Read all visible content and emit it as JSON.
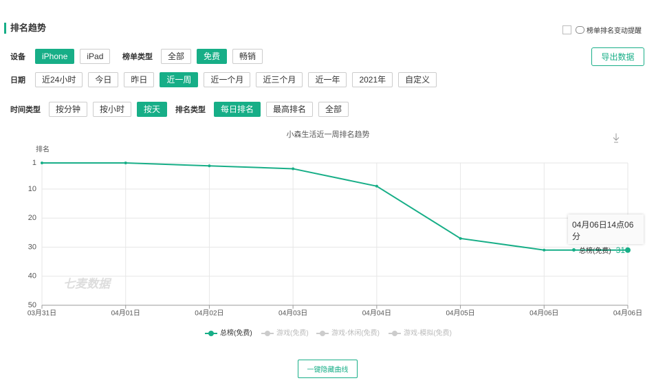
{
  "header": {
    "title": "排名趋势",
    "reminder": "榜单排名变动提醒",
    "export": "导出数据"
  },
  "filters": [
    {
      "label": "设备",
      "options": [
        "iPhone",
        "iPad"
      ],
      "active": 0
    },
    {
      "label": "榜单类型",
      "options": [
        "全部",
        "免费",
        "畅销"
      ],
      "active": 1
    },
    {
      "label": "日期",
      "options": [
        "近24小时",
        "今日",
        "昨日",
        "近一周",
        "近一个月",
        "近三个月",
        "近一年",
        "2021年",
        "自定义"
      ],
      "active": 3
    },
    {
      "label": "时间类型",
      "options": [
        "按分钟",
        "按小时",
        "按天"
      ],
      "active": 2
    },
    {
      "label": "排名类型",
      "options": [
        "每日排名",
        "最高排名",
        "全部"
      ],
      "active": 0
    }
  ],
  "chart_data": {
    "type": "line",
    "title": "小森生活近一周排名趋势",
    "y_label": "排名",
    "watermark": "七麦数据",
    "categories": [
      "03月31日",
      "04月01日",
      "04月02日",
      "04月03日",
      "04月04日",
      "04月05日",
      "04月06日",
      "04月06日"
    ],
    "series": [
      {
        "name": "总榜(免费)",
        "color": "#17ae87",
        "values": [
          1,
          1,
          2,
          3,
          9,
          27,
          31,
          31
        ]
      }
    ],
    "hidden_series": [
      {
        "name": "游戏(免费)",
        "color": "#cccccc"
      },
      {
        "name": "游戏-休闲(免费)",
        "color": "#cccccc"
      },
      {
        "name": "游戏-模拟(免费)",
        "color": "#cccccc"
      }
    ],
    "ylim": [
      1,
      50
    ],
    "yticks": [
      1,
      10,
      20,
      30,
      40,
      50
    ],
    "y_reversed": true,
    "grid": true,
    "tooltip": {
      "title": "04月06日14点06分",
      "index": 7
    }
  },
  "footer": {
    "button": "一键隐藏曲线"
  }
}
